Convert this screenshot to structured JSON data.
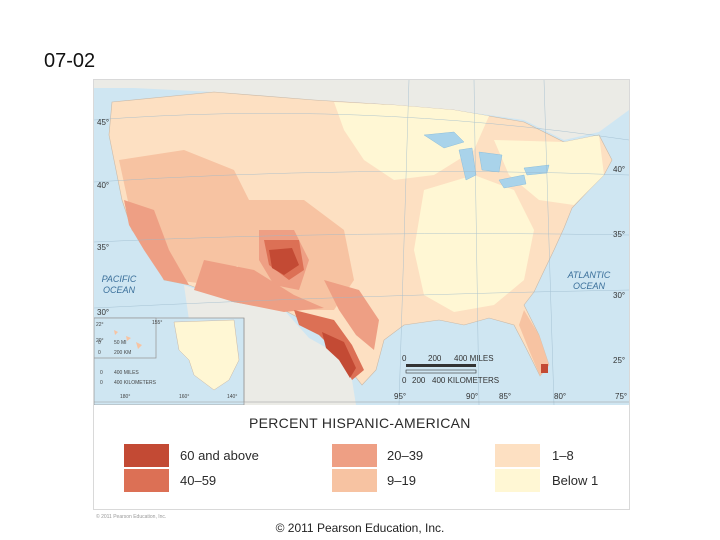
{
  "slide": {
    "title": "07-02",
    "footer": "© 2011 Pearson Education, Inc."
  },
  "map": {
    "latitudes": [
      "45°",
      "40°",
      "35°",
      "30°",
      "40°",
      "35°",
      "30°",
      "25°"
    ],
    "longitudes": [
      "95°",
      "90°",
      "85°",
      "80°",
      "75°"
    ],
    "ocean_labels": {
      "pacific": [
        "PACIFIC",
        "OCEAN"
      ],
      "atlantic": [
        "ATLANTIC",
        "OCEAN"
      ]
    },
    "scale_main": {
      "ticks_miles": [
        "0",
        "200",
        "400 MILES"
      ],
      "ticks_km": [
        "0",
        "200",
        "400 KILOMETERS"
      ]
    },
    "inset_alaska": {
      "lat_labels": [
        "22°",
        "20°"
      ],
      "lon_label": "155°",
      "scale_miles": [
        "0",
        "50 MI"
      ],
      "scale_km": [
        "0",
        "200 KM"
      ],
      "scale2_miles": [
        "0",
        "400 MILES"
      ],
      "scale2_km": [
        "0",
        "400 KILOMETERS"
      ],
      "bottom_lons": [
        "180°",
        "160°",
        "140°"
      ]
    },
    "colors": {
      "ocean": "#cfe6f2",
      "land_other": "#ebebe6",
      "lakes": "#a9d3ea",
      "c60": "#c34a34",
      "c40": "#dc7055",
      "c20": "#ee9f84",
      "c9": "#f7c3a2",
      "c1": "#fde0c2",
      "c0": "#fff7d4"
    }
  },
  "legend": {
    "title": "PERCENT HISPANIC-AMERICAN",
    "items": [
      {
        "label": "60 and above",
        "color": "#c34a34"
      },
      {
        "label": "40–59",
        "color": "#dc7055"
      },
      {
        "label": "20–39",
        "color": "#ee9f84"
      },
      {
        "label": "9–19",
        "color": "#f7c3a2"
      },
      {
        "label": "1–8",
        "color": "#fde0c2"
      },
      {
        "label": "Below 1",
        "color": "#fff7d4"
      }
    ]
  },
  "inner_credit": "© 2011 Pearson Education, Inc."
}
